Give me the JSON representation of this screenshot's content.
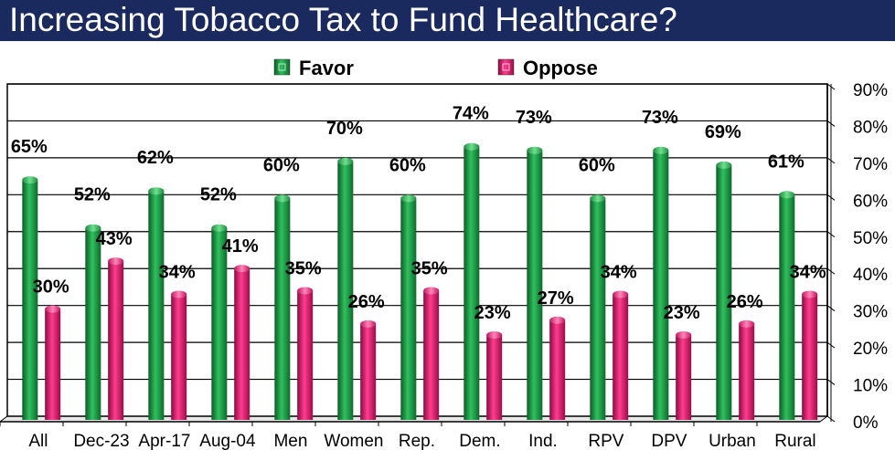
{
  "title": "Increasing Tobacco Tax to Fund Healthcare?",
  "chart_data": {
    "type": "bar",
    "title": "Increasing Tobacco Tax to Fund Healthcare?",
    "categories": [
      "All",
      "Dec-23",
      "Apr-17",
      "Aug-04",
      "Men",
      "Women",
      "Rep.",
      "Dem.",
      "Ind.",
      "RPV",
      "DPV",
      "Urban",
      "Rural"
    ],
    "series": [
      {
        "name": "Favor",
        "color": "#1a9a4a",
        "values": [
          65,
          52,
          62,
          52,
          60,
          70,
          60,
          74,
          73,
          60,
          73,
          69,
          61
        ]
      },
      {
        "name": "Oppose",
        "color": "#e0146e",
        "values": [
          30,
          43,
          34,
          41,
          35,
          26,
          35,
          23,
          27,
          34,
          23,
          26,
          34
        ]
      }
    ],
    "value_suffix": "%",
    "ylim": [
      0,
      90
    ],
    "yticks": [
      "0%",
      "10%",
      "20%",
      "30%",
      "40%",
      "50%",
      "60%",
      "70%",
      "80%",
      "90%"
    ],
    "xlabel": "",
    "ylabel": "",
    "legend_position": "top-center",
    "grid": true
  }
}
